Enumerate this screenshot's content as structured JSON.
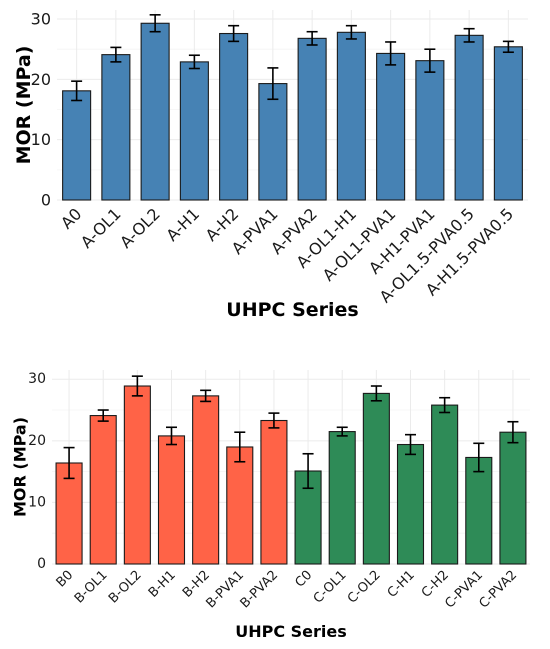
{
  "chart_data": [
    {
      "type": "bar",
      "xlabel": "UHPC Series",
      "ylabel": "MOR (MPa)",
      "ylim": [
        0,
        31.5
      ],
      "yticks": [
        0,
        10,
        20,
        30
      ],
      "grid": true,
      "categories": [
        "A0",
        "A-OL1",
        "A-OL2",
        "A-H1",
        "A-H2",
        "A-PVA1",
        "A-PVA2",
        "A-OL1-H1",
        "A-OL1-PVA1",
        "A-H1-PVA1",
        "A-OL1.5-PVA0.5",
        "A-H1.5-PVA0.5"
      ],
      "values": [
        18.1,
        24.1,
        29.3,
        22.9,
        27.6,
        19.3,
        26.8,
        27.8,
        24.3,
        23.1,
        27.3,
        25.4
      ],
      "errors": [
        1.6,
        1.2,
        1.4,
        1.1,
        1.3,
        2.6,
        1.1,
        1.1,
        1.9,
        1.9,
        1.1,
        0.9
      ],
      "bar_color": "#4682b4"
    },
    {
      "type": "bar",
      "xlabel": "UHPC Series",
      "ylabel": "MOR (MPa)",
      "ylim": [
        0,
        31.5
      ],
      "yticks": [
        0,
        10,
        20,
        30
      ],
      "grid": true,
      "categories": [
        "B0",
        "B-OL1",
        "B-OL2",
        "B-H1",
        "B-H2",
        "B-PVA1",
        "B-PVA2",
        "C0",
        "C-OL1",
        "C-OL2",
        "C-H1",
        "C-H2",
        "C-PVA1",
        "C-PVA2"
      ],
      "values": [
        16.4,
        24.1,
        28.9,
        20.8,
        27.3,
        19.0,
        23.3,
        15.1,
        21.5,
        27.7,
        19.4,
        25.8,
        17.3,
        21.4
      ],
      "errors": [
        2.5,
        0.9,
        1.6,
        1.4,
        0.9,
        2.4,
        1.2,
        2.8,
        0.7,
        1.2,
        1.6,
        1.2,
        2.3,
        1.7
      ],
      "colors": [
        "#ff6347",
        "#ff6347",
        "#ff6347",
        "#ff6347",
        "#ff6347",
        "#ff6347",
        "#ff6347",
        "#2e8b57",
        "#2e8b57",
        "#2e8b57",
        "#2e8b57",
        "#2e8b57",
        "#2e8b57",
        "#2e8b57"
      ]
    }
  ]
}
